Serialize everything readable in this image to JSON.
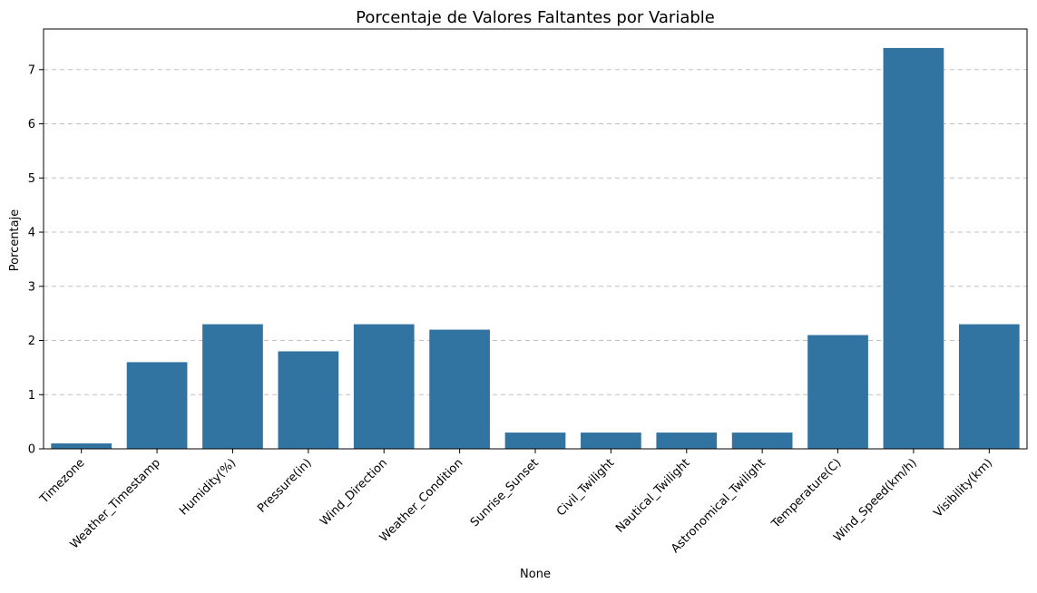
{
  "chart_data": {
    "type": "bar",
    "title": "Porcentaje de Valores Faltantes por Variable",
    "xlabel": "None",
    "ylabel": "Porcentaje",
    "categories": [
      "Timezone",
      "Weather_Timestamp",
      "Humidity(%)",
      "Pressure(in)",
      "Wind_Direction",
      "Weather_Condition",
      "Sunrise_Sunset",
      "Civil_Twilight",
      "Nautical_Twilight",
      "Astronomical_Twilight",
      "Temperature(C)",
      "Wind_Speed(km/h)",
      "Visibility(km)"
    ],
    "values": [
      0.1,
      1.6,
      2.3,
      1.8,
      2.3,
      2.2,
      0.3,
      0.3,
      0.3,
      0.3,
      2.1,
      7.4,
      2.3
    ],
    "ylim": [
      0,
      7.75
    ],
    "yticks": [
      "0",
      "1",
      "2",
      "3",
      "4",
      "5",
      "6",
      "7"
    ],
    "grid": "y-dashed",
    "bar_color": "#3274a1"
  }
}
